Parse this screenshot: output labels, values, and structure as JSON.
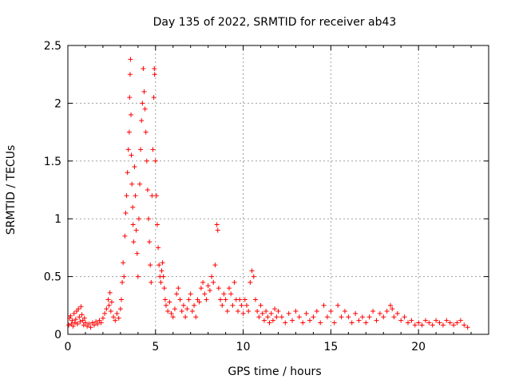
{
  "chart_data": {
    "type": "scatter",
    "title": "Day 135 of 2022, SRMTID for receiver ab43",
    "xlabel": "GPS time / hours",
    "ylabel": "SRMTID / TECUs",
    "xlim": [
      0,
      24
    ],
    "ylim": [
      0,
      2.5
    ],
    "xticks": [
      0,
      5,
      10,
      15,
      20
    ],
    "yticks": [
      0,
      0.5,
      1,
      1.5,
      2,
      2.5
    ],
    "xtick_labels": [
      "0",
      "5",
      "10",
      "15",
      "20"
    ],
    "ytick_labels": [
      "0",
      "0.5",
      "1",
      "1.5",
      "2",
      "2.5"
    ],
    "grid": true,
    "marker": "+",
    "series": [
      {
        "name": "SRMTID",
        "color": "#ff0000",
        "points": [
          [
            0.05,
            0.08
          ],
          [
            0.1,
            0.14
          ],
          [
            0.15,
            0.16
          ],
          [
            0.2,
            0.09
          ],
          [
            0.25,
            0.12
          ],
          [
            0.3,
            0.07
          ],
          [
            0.35,
            0.18
          ],
          [
            0.4,
            0.1
          ],
          [
            0.45,
            0.13
          ],
          [
            0.5,
            0.2
          ],
          [
            0.55,
            0.09
          ],
          [
            0.6,
            0.22
          ],
          [
            0.65,
            0.15
          ],
          [
            0.7,
            0.11
          ],
          [
            0.75,
            0.24
          ],
          [
            0.8,
            0.17
          ],
          [
            0.85,
            0.12
          ],
          [
            0.9,
            0.08
          ],
          [
            0.95,
            0.14
          ],
          [
            1.0,
            0.1
          ],
          [
            1.1,
            0.07
          ],
          [
            1.2,
            0.09
          ],
          [
            1.3,
            0.06
          ],
          [
            1.4,
            0.1
          ],
          [
            1.5,
            0.08
          ],
          [
            1.6,
            0.11
          ],
          [
            1.7,
            0.09
          ],
          [
            1.8,
            0.12
          ],
          [
            1.9,
            0.1
          ],
          [
            2.0,
            0.14
          ],
          [
            2.1,
            0.18
          ],
          [
            2.2,
            0.22
          ],
          [
            2.3,
            0.3
          ],
          [
            2.35,
            0.25
          ],
          [
            2.4,
            0.36
          ],
          [
            2.45,
            0.2
          ],
          [
            2.5,
            0.28
          ],
          [
            2.6,
            0.15
          ],
          [
            2.7,
            0.12
          ],
          [
            2.8,
            0.18
          ],
          [
            2.9,
            0.14
          ],
          [
            3.0,
            0.22
          ],
          [
            3.05,
            0.3
          ],
          [
            3.1,
            0.45
          ],
          [
            3.15,
            0.62
          ],
          [
            3.2,
            0.5
          ],
          [
            3.25,
            0.85
          ],
          [
            3.3,
            1.05
          ],
          [
            3.35,
            1.2
          ],
          [
            3.4,
            1.4
          ],
          [
            3.45,
            1.6
          ],
          [
            3.5,
            1.75
          ],
          [
            3.52,
            2.05
          ],
          [
            3.55,
            2.25
          ],
          [
            3.57,
            2.38
          ],
          [
            3.6,
            1.9
          ],
          [
            3.62,
            1.55
          ],
          [
            3.65,
            1.3
          ],
          [
            3.7,
            1.1
          ],
          [
            3.72,
            0.95
          ],
          [
            3.75,
            0.8
          ],
          [
            3.8,
            1.45
          ],
          [
            3.85,
            1.2
          ],
          [
            3.9,
            0.9
          ],
          [
            3.95,
            0.7
          ],
          [
            4.0,
            0.5
          ],
          [
            4.05,
            1.0
          ],
          [
            4.1,
            1.3
          ],
          [
            4.15,
            1.6
          ],
          [
            4.2,
            1.85
          ],
          [
            4.25,
            2.0
          ],
          [
            4.3,
            2.3
          ],
          [
            4.35,
            2.1
          ],
          [
            4.4,
            1.95
          ],
          [
            4.45,
            1.75
          ],
          [
            4.5,
            1.5
          ],
          [
            4.55,
            1.25
          ],
          [
            4.6,
            1.0
          ],
          [
            4.65,
            0.8
          ],
          [
            4.7,
            0.6
          ],
          [
            4.75,
            0.45
          ],
          [
            4.8,
            1.2
          ],
          [
            4.85,
            1.6
          ],
          [
            4.9,
            2.05
          ],
          [
            4.93,
            2.3
          ],
          [
            4.95,
            2.25
          ],
          [
            5.0,
            1.5
          ],
          [
            5.05,
            1.2
          ],
          [
            5.1,
            0.95
          ],
          [
            5.15,
            0.75
          ],
          [
            5.2,
            0.6
          ],
          [
            5.25,
            0.5
          ],
          [
            5.3,
            0.45
          ],
          [
            5.35,
            0.55
          ],
          [
            5.4,
            0.62
          ],
          [
            5.45,
            0.5
          ],
          [
            5.5,
            0.4
          ],
          [
            5.55,
            0.3
          ],
          [
            5.6,
            0.25
          ],
          [
            5.7,
            0.2
          ],
          [
            5.8,
            0.28
          ],
          [
            5.9,
            0.18
          ],
          [
            6.0,
            0.15
          ],
          [
            6.1,
            0.22
          ],
          [
            6.2,
            0.35
          ],
          [
            6.3,
            0.4
          ],
          [
            6.4,
            0.3
          ],
          [
            6.5,
            0.2
          ],
          [
            6.6,
            0.25
          ],
          [
            6.7,
            0.15
          ],
          [
            6.8,
            0.22
          ],
          [
            6.9,
            0.3
          ],
          [
            7.0,
            0.35
          ],
          [
            7.1,
            0.2
          ],
          [
            7.2,
            0.25
          ],
          [
            7.3,
            0.15
          ],
          [
            7.4,
            0.3
          ],
          [
            7.5,
            0.28
          ],
          [
            7.6,
            0.4
          ],
          [
            7.7,
            0.45
          ],
          [
            7.8,
            0.35
          ],
          [
            7.9,
            0.3
          ],
          [
            8.0,
            0.42
          ],
          [
            8.1,
            0.38
          ],
          [
            8.2,
            0.5
          ],
          [
            8.3,
            0.45
          ],
          [
            8.4,
            0.6
          ],
          [
            8.5,
            0.95
          ],
          [
            8.55,
            0.9
          ],
          [
            8.6,
            0.4
          ],
          [
            8.7,
            0.3
          ],
          [
            8.8,
            0.25
          ],
          [
            8.9,
            0.35
          ],
          [
            9.0,
            0.3
          ],
          [
            9.1,
            0.2
          ],
          [
            9.2,
            0.4
          ],
          [
            9.3,
            0.35
          ],
          [
            9.4,
            0.25
          ],
          [
            9.5,
            0.45
          ],
          [
            9.6,
            0.3
          ],
          [
            9.7,
            0.2
          ],
          [
            9.8,
            0.3
          ],
          [
            9.9,
            0.25
          ],
          [
            10.0,
            0.18
          ],
          [
            10.1,
            0.3
          ],
          [
            10.2,
            0.25
          ],
          [
            10.3,
            0.2
          ],
          [
            10.4,
            0.45
          ],
          [
            10.5,
            0.55
          ],
          [
            10.6,
            0.5
          ],
          [
            10.7,
            0.3
          ],
          [
            10.8,
            0.2
          ],
          [
            10.9,
            0.15
          ],
          [
            11.0,
            0.25
          ],
          [
            11.1,
            0.18
          ],
          [
            11.2,
            0.12
          ],
          [
            11.3,
            0.2
          ],
          [
            11.4,
            0.15
          ],
          [
            11.5,
            0.1
          ],
          [
            11.6,
            0.18
          ],
          [
            11.7,
            0.12
          ],
          [
            11.8,
            0.22
          ],
          [
            11.9,
            0.15
          ],
          [
            12.0,
            0.2
          ],
          [
            12.2,
            0.15
          ],
          [
            12.4,
            0.1
          ],
          [
            12.6,
            0.18
          ],
          [
            12.8,
            0.12
          ],
          [
            13.0,
            0.2
          ],
          [
            13.2,
            0.15
          ],
          [
            13.4,
            0.1
          ],
          [
            13.6,
            0.18
          ],
          [
            13.8,
            0.12
          ],
          [
            14.0,
            0.15
          ],
          [
            14.2,
            0.2
          ],
          [
            14.4,
            0.1
          ],
          [
            14.6,
            0.25
          ],
          [
            14.8,
            0.15
          ],
          [
            15.0,
            0.2
          ],
          [
            15.2,
            0.1
          ],
          [
            15.4,
            0.25
          ],
          [
            15.6,
            0.15
          ],
          [
            15.8,
            0.2
          ],
          [
            16.0,
            0.15
          ],
          [
            16.2,
            0.1
          ],
          [
            16.4,
            0.18
          ],
          [
            16.6,
            0.12
          ],
          [
            16.8,
            0.15
          ],
          [
            17.0,
            0.1
          ],
          [
            17.2,
            0.15
          ],
          [
            17.4,
            0.2
          ],
          [
            17.6,
            0.12
          ],
          [
            17.8,
            0.18
          ],
          [
            18.0,
            0.15
          ],
          [
            18.2,
            0.2
          ],
          [
            18.4,
            0.25
          ],
          [
            18.5,
            0.22
          ],
          [
            18.6,
            0.15
          ],
          [
            18.8,
            0.18
          ],
          [
            19.0,
            0.12
          ],
          [
            19.2,
            0.15
          ],
          [
            19.4,
            0.1
          ],
          [
            19.6,
            0.12
          ],
          [
            19.8,
            0.08
          ],
          [
            20.0,
            0.1
          ],
          [
            20.2,
            0.08
          ],
          [
            20.4,
            0.12
          ],
          [
            20.6,
            0.1
          ],
          [
            20.8,
            0.08
          ],
          [
            21.0,
            0.12
          ],
          [
            21.2,
            0.1
          ],
          [
            21.4,
            0.08
          ],
          [
            21.6,
            0.12
          ],
          [
            21.8,
            0.1
          ],
          [
            22.0,
            0.08
          ],
          [
            22.2,
            0.1
          ],
          [
            22.4,
            0.12
          ],
          [
            22.6,
            0.08
          ],
          [
            22.8,
            0.06
          ]
        ]
      }
    ]
  }
}
